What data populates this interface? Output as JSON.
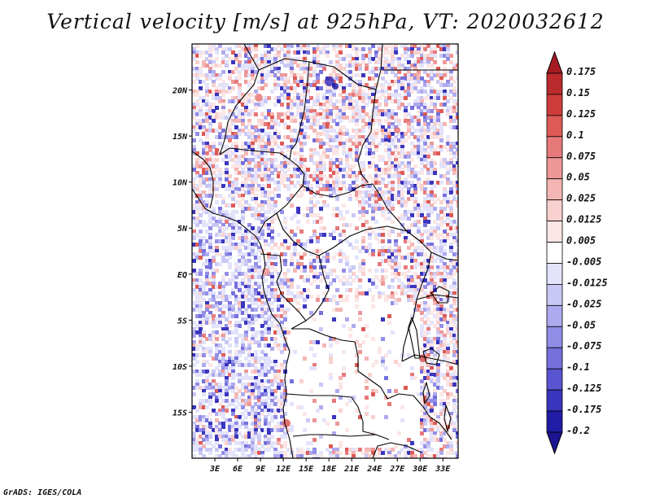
{
  "title": "Vertical velocity [m/s] at 925hPa, VT: 2020032612",
  "credit": "GrADS: IGES/COLA",
  "map": {
    "region": "Central Africa",
    "lon_range": [
      0,
      35
    ],
    "lat_range": [
      -20,
      25
    ],
    "lat_ticks": [
      {
        "label": "20N",
        "lat": 20
      },
      {
        "label": "15N",
        "lat": 15
      },
      {
        "label": "10N",
        "lat": 10
      },
      {
        "label": "5N",
        "lat": 5
      },
      {
        "label": "EQ",
        "lat": 0
      },
      {
        "label": "5S",
        "lat": -5
      },
      {
        "label": "10S",
        "lat": -10
      },
      {
        "label": "15S",
        "lat": -15
      }
    ],
    "lon_ticks": [
      {
        "label": "3E",
        "lon": 3
      },
      {
        "label": "6E",
        "lon": 6
      },
      {
        "label": "9E",
        "lon": 9
      },
      {
        "label": "12E",
        "lon": 12
      },
      {
        "label": "15E",
        "lon": 15
      },
      {
        "label": "18E",
        "lon": 18
      },
      {
        "label": "21E",
        "lon": 21
      },
      {
        "label": "24E",
        "lon": 24
      },
      {
        "label": "27E",
        "lon": 27
      },
      {
        "label": "30E",
        "lon": 30
      },
      {
        "label": "33E",
        "lon": 33
      }
    ]
  },
  "colorbar": {
    "levels": [
      {
        "label": "0.175",
        "color": "#a51c24"
      },
      {
        "label": "0.15",
        "color": "#bb2a2c"
      },
      {
        "label": "0.125",
        "color": "#ce3c3a"
      },
      {
        "label": "0.1",
        "color": "#dd5a55"
      },
      {
        "label": "0.075",
        "color": "#e6797a"
      },
      {
        "label": "0.05",
        "color": "#ed9797"
      },
      {
        "label": "0.025",
        "color": "#f4b6b4"
      },
      {
        "label": "0.0125",
        "color": "#f8d0ce"
      },
      {
        "label": "0.005",
        "color": "#fbe6e5"
      },
      {
        "label": "-0.005",
        "color": "#ffffff"
      },
      {
        "label": "-0.0125",
        "color": "#e3e3fb"
      },
      {
        "label": "-0.025",
        "color": "#c9c8f5"
      },
      {
        "label": "-0.05",
        "color": "#aeaaef"
      },
      {
        "label": "-0.075",
        "color": "#928de6"
      },
      {
        "label": "-0.1",
        "color": "#7570dc"
      },
      {
        "label": "-0.125",
        "color": "#5954cf"
      },
      {
        "label": "-0.175",
        "color": "#3a35bd"
      },
      {
        "label": "-0.2",
        "color": "#211ca6"
      }
    ],
    "top_cap_color": "#a51c24",
    "bottom_cap_color": "#1a1490"
  }
}
